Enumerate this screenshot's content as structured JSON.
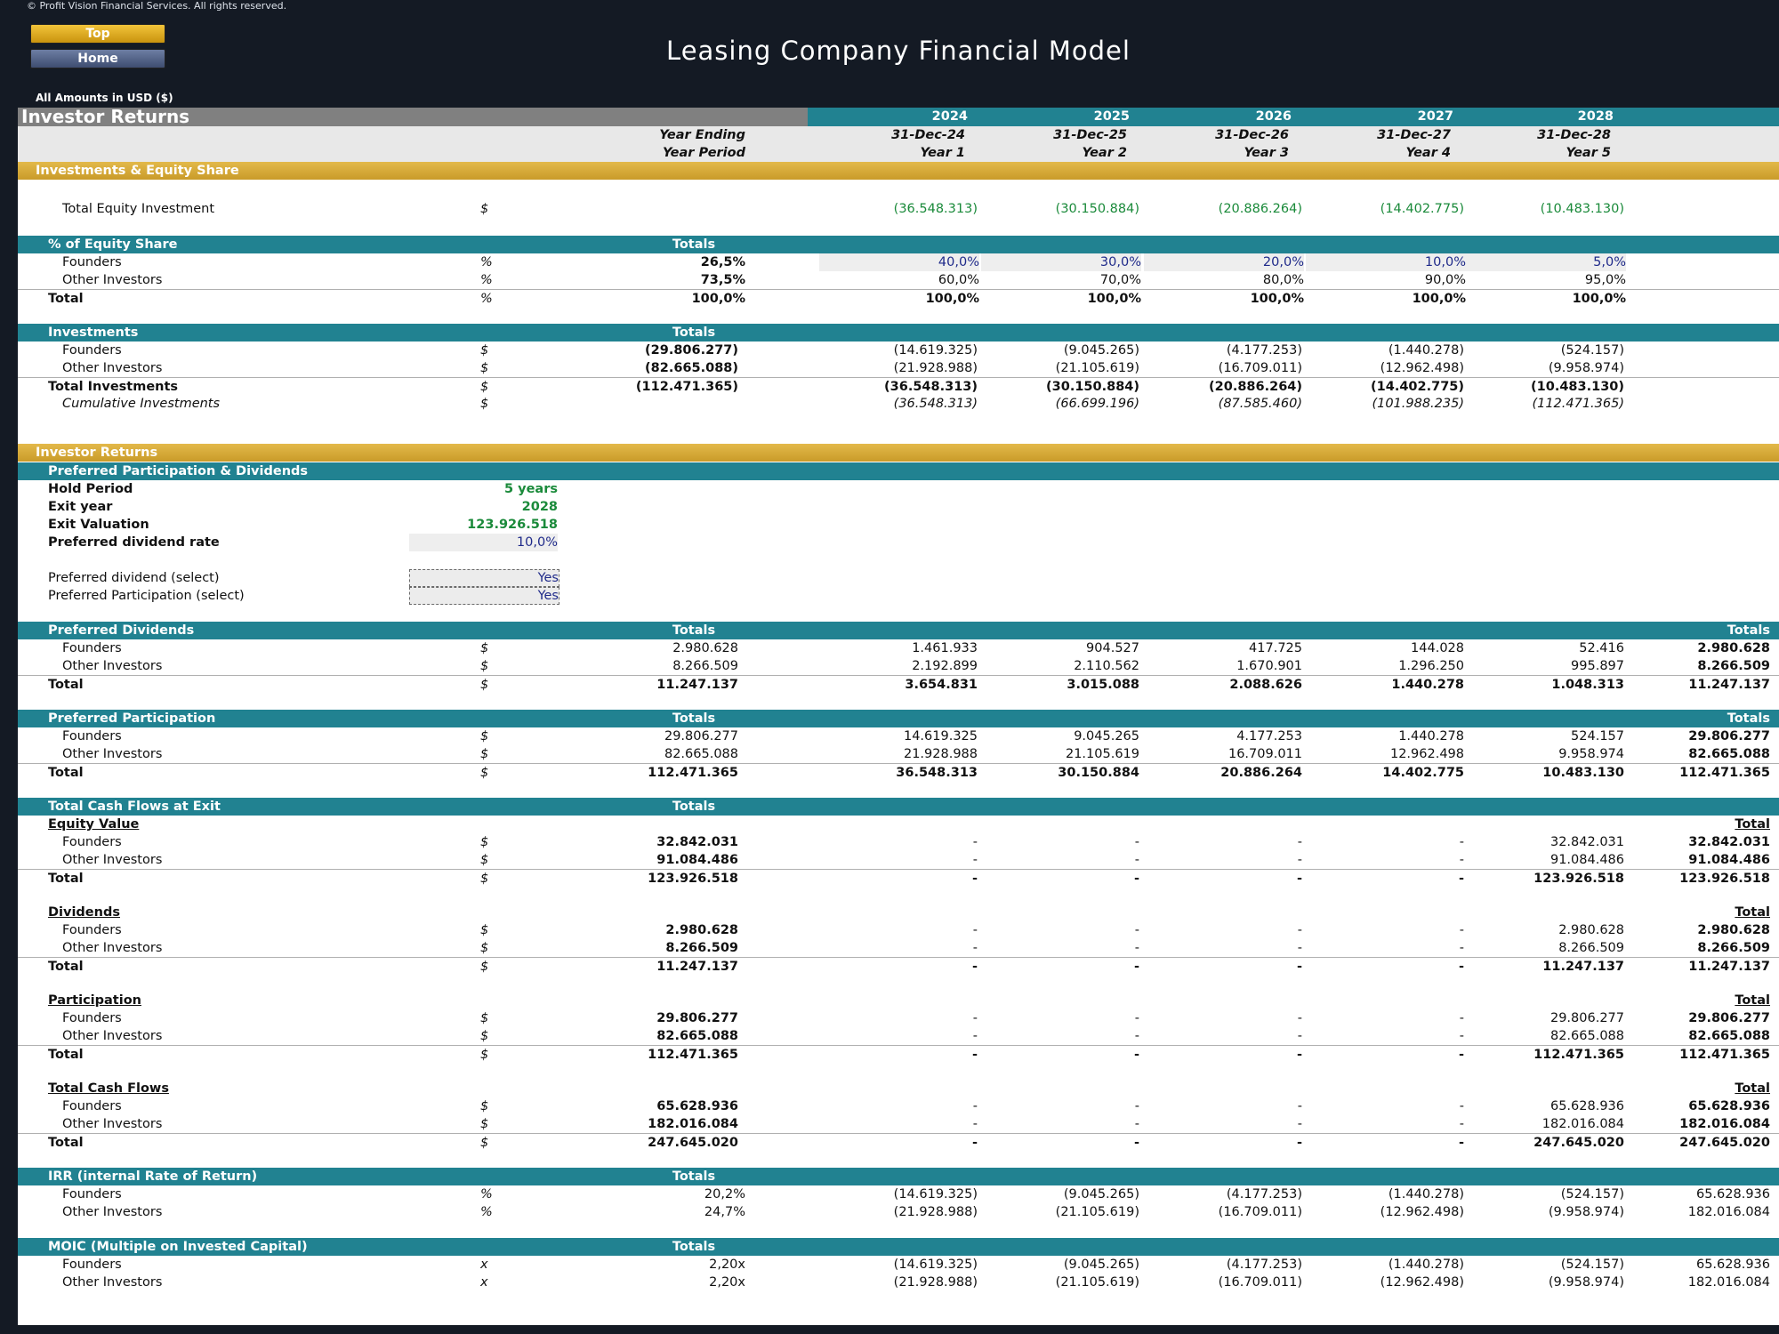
{
  "copyright": "© Profit Vision Financial Services. All rights reserved.",
  "nav": {
    "top": "Top",
    "home": "Home"
  },
  "title": "Leasing Company Financial Model",
  "amounts_note": "All Amounts in  USD ($)",
  "header": {
    "section": "Investor Returns",
    "years": [
      "2024",
      "2025",
      "2026",
      "2027",
      "2028"
    ],
    "year_ending_label": "Year Ending",
    "year_period_label": "Year Period",
    "year_ending": [
      "31-Dec-24",
      "31-Dec-25",
      "31-Dec-26",
      "31-Dec-27",
      "31-Dec-28"
    ],
    "year_period": [
      "Year 1",
      "Year 2",
      "Year 3",
      "Year 4",
      "Year 5"
    ]
  },
  "investments_section": "Investments & Equity Share",
  "total_equity": {
    "label": "Total Equity Investment",
    "unit": "$",
    "values": [
      "(36.548.313)",
      "(30.150.884)",
      "(20.886.264)",
      "(14.402.775)",
      "(10.483.130)"
    ]
  },
  "equity_share": {
    "title": "% of Equity Share",
    "totals": "Totals",
    "rows": [
      {
        "label": "Founders",
        "unit": "%",
        "total": "26,5%",
        "values": [
          "40,0%",
          "30,0%",
          "20,0%",
          "10,0%",
          "5,0%"
        ]
      },
      {
        "label": "Other Investors",
        "unit": "%",
        "total": "73,5%",
        "values": [
          "60,0%",
          "70,0%",
          "80,0%",
          "90,0%",
          "95,0%"
        ]
      },
      {
        "label": "Total",
        "unit": "%",
        "total": "100,0%",
        "values": [
          "100,0%",
          "100,0%",
          "100,0%",
          "100,0%",
          "100,0%"
        ]
      }
    ]
  },
  "investments": {
    "title": "Investments",
    "totals": "Totals",
    "rows": [
      {
        "label": "Founders",
        "unit": "$",
        "total": "(29.806.277)",
        "values": [
          "(14.619.325)",
          "(9.045.265)",
          "(4.177.253)",
          "(1.440.278)",
          "(524.157)"
        ]
      },
      {
        "label": "Other Investors",
        "unit": "$",
        "total": "(82.665.088)",
        "values": [
          "(21.928.988)",
          "(21.105.619)",
          "(16.709.011)",
          "(12.962.498)",
          "(9.958.974)"
        ]
      },
      {
        "label": "Total Investments",
        "unit": "$",
        "total": "(112.471.365)",
        "values": [
          "(36.548.313)",
          "(30.150.884)",
          "(20.886.264)",
          "(14.402.775)",
          "(10.483.130)"
        ]
      },
      {
        "label": "Cumulative Investments",
        "unit": "$",
        "total": "",
        "values": [
          "(36.548.313)",
          "(66.699.196)",
          "(87.585.460)",
          "(101.988.235)",
          "(112.471.365)"
        ]
      }
    ]
  },
  "returns_section": "Investor Returns",
  "preferred": {
    "title": "Preferred Participation & Dividends",
    "hold_period": {
      "label": "Hold Period",
      "value": "5 years"
    },
    "exit_year": {
      "label": "Exit year",
      "value": "2028"
    },
    "exit_valuation": {
      "label": "Exit Valuation",
      "value": "123.926.518"
    },
    "dividend_rate": {
      "label": "Preferred dividend rate",
      "value": "10,0%"
    },
    "dividend_select": {
      "label": "Preferred dividend (select)",
      "value": "Yes"
    },
    "participation_select": {
      "label": "Preferred Participation (select)",
      "value": "Yes"
    }
  },
  "pref_dividends": {
    "title": "Preferred Dividends",
    "totals": "Totals",
    "right_totals": "Totals",
    "rows": [
      {
        "label": "Founders",
        "unit": "$",
        "total": "2.980.628",
        "values": [
          "1.461.933",
          "904.527",
          "417.725",
          "144.028",
          "52.416"
        ],
        "right": "2.980.628"
      },
      {
        "label": "Other Investors",
        "unit": "$",
        "total": "8.266.509",
        "values": [
          "2.192.899",
          "2.110.562",
          "1.670.901",
          "1.296.250",
          "995.897"
        ],
        "right": "8.266.509"
      },
      {
        "label": "Total",
        "unit": "$",
        "total": "11.247.137",
        "values": [
          "3.654.831",
          "3.015.088",
          "2.088.626",
          "1.440.278",
          "1.048.313"
        ],
        "right": "11.247.137"
      }
    ]
  },
  "pref_participation": {
    "title": "Preferred Participation",
    "totals": "Totals",
    "right_totals": "Totals",
    "rows": [
      {
        "label": "Founders",
        "unit": "$",
        "total": "29.806.277",
        "values": [
          "14.619.325",
          "9.045.265",
          "4.177.253",
          "1.440.278",
          "524.157"
        ],
        "right": "29.806.277"
      },
      {
        "label": "Other Investors",
        "unit": "$",
        "total": "82.665.088",
        "values": [
          "21.928.988",
          "21.105.619",
          "16.709.011",
          "12.962.498",
          "9.958.974"
        ],
        "right": "82.665.088"
      },
      {
        "label": "Total",
        "unit": "$",
        "total": "112.471.365",
        "values": [
          "36.548.313",
          "30.150.884",
          "20.886.264",
          "14.402.775",
          "10.483.130"
        ],
        "right": "112.471.365"
      }
    ]
  },
  "exit_cash": {
    "title": "Total Cash Flows at Exit",
    "totals": "Totals",
    "groups": [
      {
        "title": "Equity Value",
        "right_total": "Total",
        "rows": [
          {
            "label": "Founders",
            "unit": "$",
            "total": "32.842.031",
            "values": [
              "-",
              "-",
              "-",
              "-",
              "32.842.031"
            ],
            "right": "32.842.031"
          },
          {
            "label": "Other Investors",
            "unit": "$",
            "total": "91.084.486",
            "values": [
              "-",
              "-",
              "-",
              "-",
              "91.084.486"
            ],
            "right": "91.084.486"
          },
          {
            "label": "Total",
            "unit": "$",
            "total": "123.926.518",
            "values": [
              "-",
              "-",
              "-",
              "-",
              "123.926.518"
            ],
            "right": "123.926.518"
          }
        ]
      },
      {
        "title": "Dividends",
        "right_total": "Total",
        "rows": [
          {
            "label": "Founders",
            "unit": "$",
            "total": "2.980.628",
            "values": [
              "-",
              "-",
              "-",
              "-",
              "2.980.628"
            ],
            "right": "2.980.628"
          },
          {
            "label": "Other Investors",
            "unit": "$",
            "total": "8.266.509",
            "values": [
              "-",
              "-",
              "-",
              "-",
              "8.266.509"
            ],
            "right": "8.266.509"
          },
          {
            "label": "Total",
            "unit": "$",
            "total": "11.247.137",
            "values": [
              "-",
              "-",
              "-",
              "-",
              "11.247.137"
            ],
            "right": "11.247.137"
          }
        ]
      },
      {
        "title": "Participation",
        "right_total": "Total",
        "rows": [
          {
            "label": "Founders",
            "unit": "$",
            "total": "29.806.277",
            "values": [
              "-",
              "-",
              "-",
              "-",
              "29.806.277"
            ],
            "right": "29.806.277"
          },
          {
            "label": "Other Investors",
            "unit": "$",
            "total": "82.665.088",
            "values": [
              "-",
              "-",
              "-",
              "-",
              "82.665.088"
            ],
            "right": "82.665.088"
          },
          {
            "label": "Total",
            "unit": "$",
            "total": "112.471.365",
            "values": [
              "-",
              "-",
              "-",
              "-",
              "112.471.365"
            ],
            "right": "112.471.365"
          }
        ]
      },
      {
        "title": "Total Cash Flows",
        "right_total": "Total",
        "rows": [
          {
            "label": "Founders",
            "unit": "$",
            "total": "65.628.936",
            "values": [
              "-",
              "-",
              "-",
              "-",
              "65.628.936"
            ],
            "right": "65.628.936"
          },
          {
            "label": "Other Investors",
            "unit": "$",
            "total": "182.016.084",
            "values": [
              "-",
              "-",
              "-",
              "-",
              "182.016.084"
            ],
            "right": "182.016.084"
          },
          {
            "label": "Total",
            "unit": "$",
            "total": "247.645.020",
            "values": [
              "-",
              "-",
              "-",
              "-",
              "247.645.020"
            ],
            "right": "247.645.020"
          }
        ]
      }
    ]
  },
  "irr": {
    "title": "IRR (internal Rate of Return)",
    "totals": "Totals",
    "rows": [
      {
        "label": "Founders",
        "unit": "%",
        "total": "20,2%",
        "values": [
          "(14.619.325)",
          "(9.045.265)",
          "(4.177.253)",
          "(1.440.278)",
          "(524.157)"
        ],
        "right": "65.628.936"
      },
      {
        "label": "Other Investors",
        "unit": "%",
        "total": "24,7%",
        "values": [
          "(21.928.988)",
          "(21.105.619)",
          "(16.709.011)",
          "(12.962.498)",
          "(9.958.974)"
        ],
        "right": "182.016.084"
      }
    ]
  },
  "moic": {
    "title": "MOIC (Multiple on Invested Capital)",
    "totals": "Totals",
    "rows": [
      {
        "label": "Founders",
        "unit": "x",
        "total": "2,20x",
        "values": [
          "(14.619.325)",
          "(9.045.265)",
          "(4.177.253)",
          "(1.440.278)",
          "(524.157)"
        ],
        "right": "65.628.936"
      },
      {
        "label": "Other Investors",
        "unit": "x",
        "total": "2,20x",
        "values": [
          "(21.928.988)",
          "(21.105.619)",
          "(16.709.011)",
          "(12.962.498)",
          "(9.958.974)"
        ],
        "right": "182.016.084"
      }
    ]
  }
}
